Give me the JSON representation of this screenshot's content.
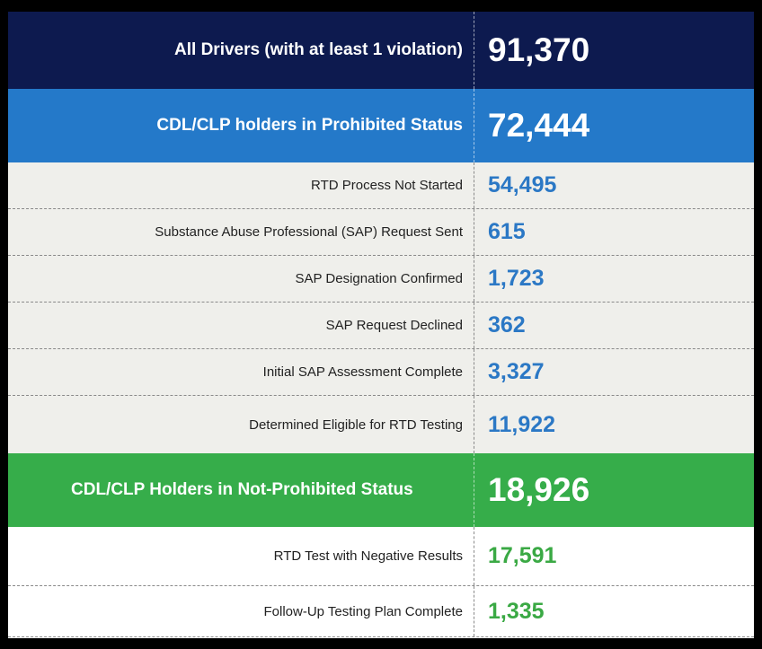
{
  "header_all": {
    "label": "All Drivers (with at least 1 violation)",
    "value": "91,370"
  },
  "prohibited": {
    "label": "CDL/CLP holders in Prohibited Status",
    "value": "72,444",
    "rows": [
      {
        "label": "RTD Process Not Started",
        "value": "54,495"
      },
      {
        "label": "Substance Abuse Professional (SAP) Request Sent",
        "value": "615"
      },
      {
        "label": "SAP Designation Confirmed",
        "value": "1,723"
      },
      {
        "label": "SAP Request Declined",
        "value": "362"
      },
      {
        "label": "Initial SAP Assessment Complete",
        "value": "3,327"
      },
      {
        "label": "Determined Eligible for RTD Testing",
        "value": "11,922"
      }
    ]
  },
  "not_prohibited": {
    "label": "CDL/CLP Holders in Not-Prohibited Status",
    "value": "18,926",
    "rows": [
      {
        "label": "RTD Test with Negative Results",
        "value": "17,591"
      },
      {
        "label": "Follow-Up Testing Plan Complete",
        "value": "1,335"
      }
    ]
  },
  "colors": {
    "navy": "#0d1a4f",
    "blue": "#2479c9",
    "green": "#36ad4a",
    "gray_row": "#efefeb",
    "blue_text": "#2b78c5",
    "green_text": "#3aa944"
  }
}
